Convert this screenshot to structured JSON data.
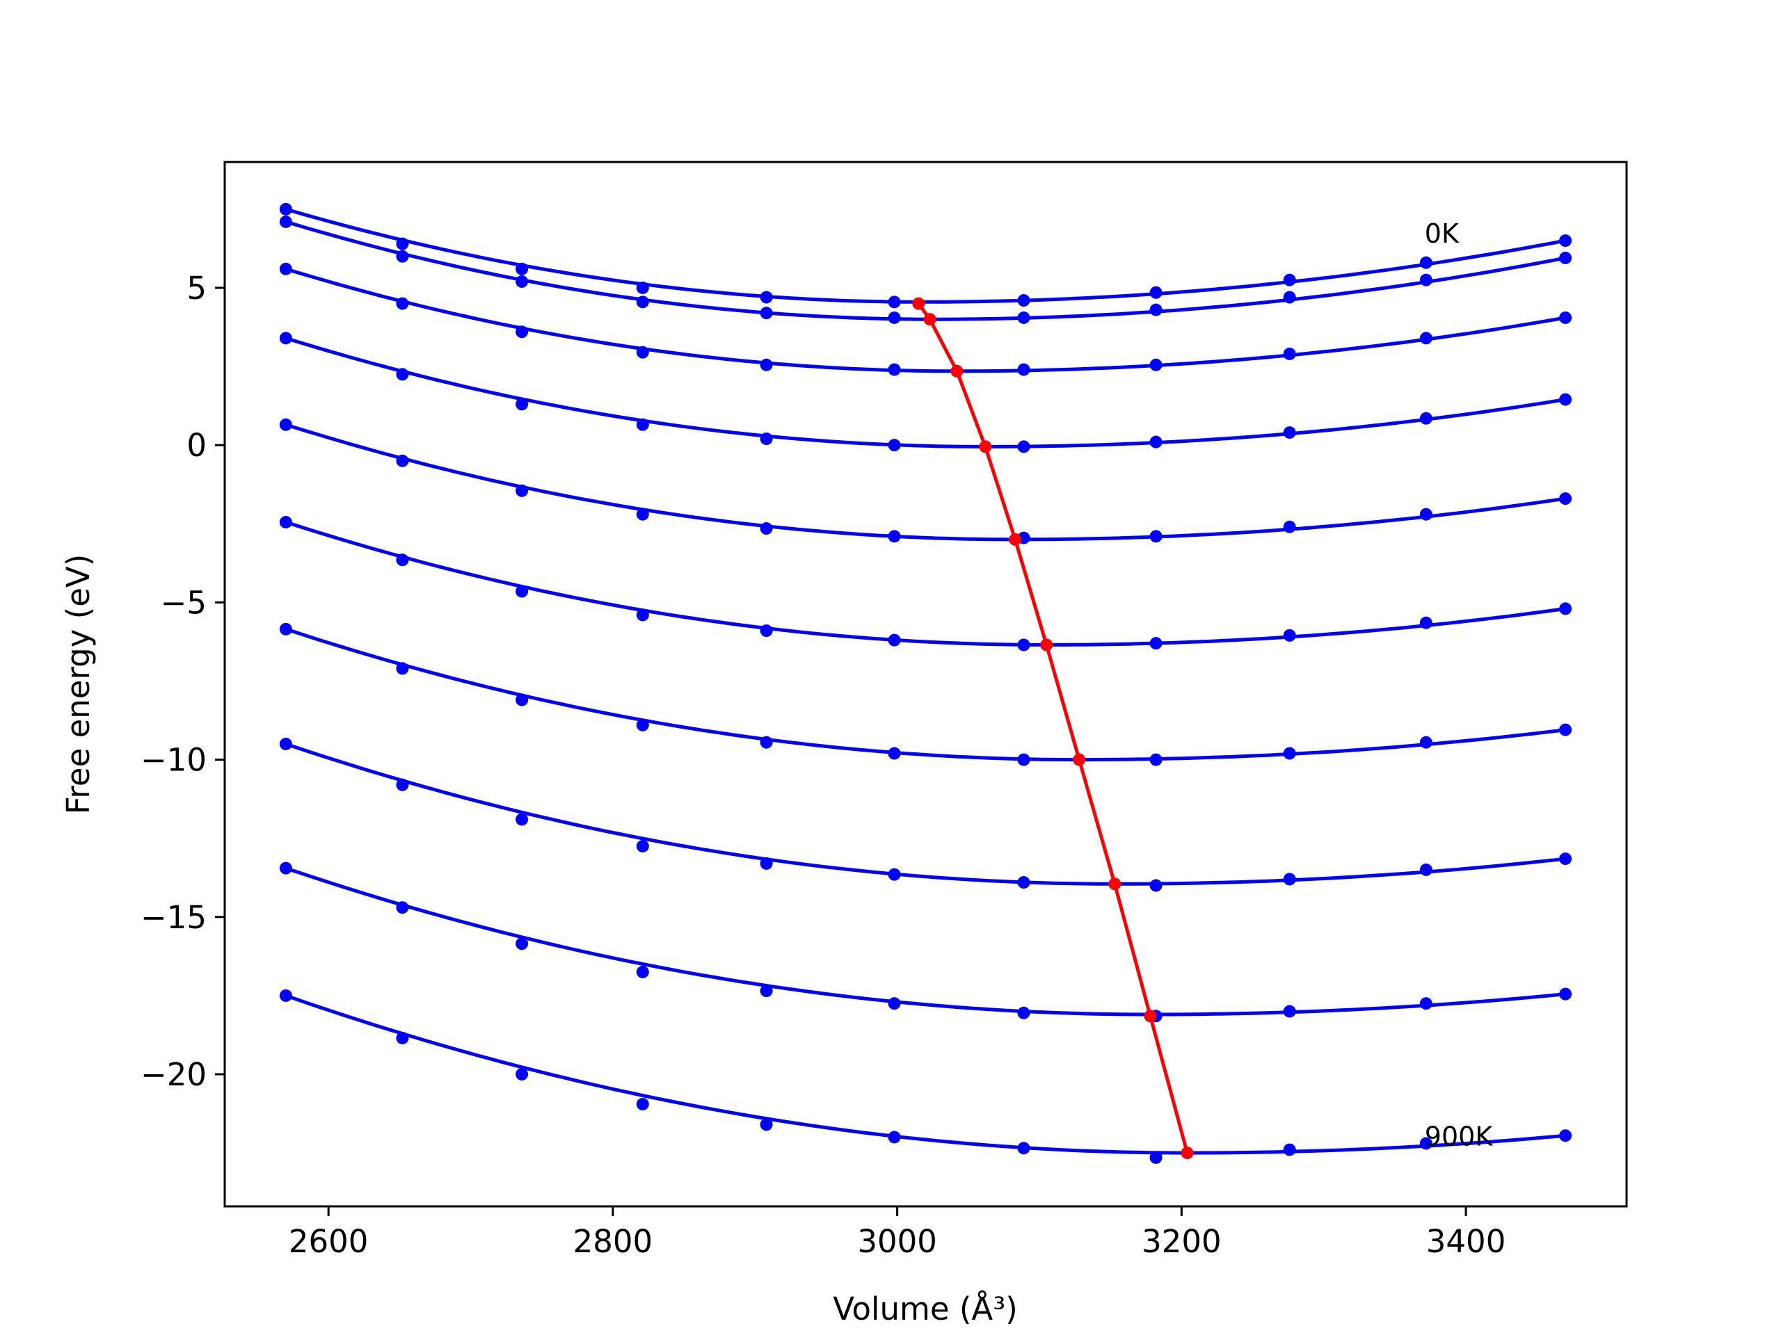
{
  "chart_data": {
    "type": "line",
    "xlabel": "Volume (Å³)",
    "ylabel": "Free energy (eV)",
    "xlim": [
      2527,
      3513
    ],
    "ylim": [
      -24.2,
      9.0
    ],
    "xticks": [
      2600,
      2800,
      3000,
      3200,
      3400
    ],
    "xtick_labels": [
      "2600",
      "2800",
      "3000",
      "3200",
      "3400"
    ],
    "yticks": [
      5,
      0,
      -5,
      -10,
      -15,
      -20
    ],
    "ytick_labels": [
      "5",
      "0",
      "−5",
      "−10",
      "−15",
      "−20"
    ],
    "grid": false,
    "legend": "none",
    "annotations": [
      {
        "text": "0K",
        "x": 3371,
        "y": 6.7
      },
      {
        "text": "900K",
        "x": 3371,
        "y": -22.0
      }
    ],
    "x": [
      2570,
      2652,
      2736,
      2821,
      2908,
      2998,
      3089,
      3182,
      3276,
      3372,
      3470
    ],
    "series": [
      {
        "color": "#0000ff",
        "points": [
          7.5,
          6.4,
          5.6,
          5.0,
          4.7,
          4.55,
          4.6,
          4.85,
          5.25,
          5.8,
          6.5
        ],
        "fit_min": [
          3017,
          4.55
        ]
      },
      {
        "color": "#0000ff",
        "points": [
          7.1,
          6.0,
          5.2,
          4.55,
          4.2,
          4.05,
          4.05,
          4.3,
          4.7,
          5.25,
          5.95
        ],
        "fit_min": [
          3025,
          4.0
        ]
      },
      {
        "color": "#0000ff",
        "points": [
          5.6,
          4.5,
          3.6,
          2.95,
          2.55,
          2.4,
          2.4,
          2.55,
          2.9,
          3.4,
          4.05
        ],
        "fit_min": [
          3042,
          2.35
        ]
      },
      {
        "color": "#0000ff",
        "points": [
          3.4,
          2.25,
          1.3,
          0.65,
          0.2,
          0.0,
          -0.05,
          0.1,
          0.4,
          0.85,
          1.45
        ],
        "fit_min": [
          3062,
          -0.05
        ]
      },
      {
        "color": "#0000ff",
        "points": [
          0.65,
          -0.5,
          -1.45,
          -2.2,
          -2.65,
          -2.9,
          -2.95,
          -2.9,
          -2.6,
          -2.2,
          -1.7
        ],
        "fit_min": [
          3083,
          -3.0
        ]
      },
      {
        "color": "#0000ff",
        "points": [
          -2.45,
          -3.65,
          -4.65,
          -5.4,
          -5.9,
          -6.2,
          -6.35,
          -6.3,
          -6.05,
          -5.65,
          -5.2
        ],
        "fit_min": [
          3105,
          -6.35
        ]
      },
      {
        "color": "#0000ff",
        "points": [
          -5.85,
          -7.1,
          -8.1,
          -8.9,
          -9.45,
          -9.8,
          -10.0,
          -10.0,
          -9.8,
          -9.45,
          -9.05
        ],
        "fit_min": [
          3128,
          -10.0
        ]
      },
      {
        "color": "#0000ff",
        "points": [
          -9.5,
          -10.8,
          -11.9,
          -12.75,
          -13.3,
          -13.65,
          -13.9,
          -14.0,
          -13.8,
          -13.5,
          -13.15
        ],
        "fit_min": [
          3153,
          -13.95
        ]
      },
      {
        "color": "#0000ff",
        "points": [
          -13.45,
          -14.7,
          -15.85,
          -16.75,
          -17.35,
          -17.75,
          -18.05,
          -18.15,
          -18.0,
          -17.75,
          -17.45
        ],
        "fit_min": [
          3178,
          -18.1
        ]
      },
      {
        "color": "#0000ff",
        "points": [
          -17.5,
          -18.85,
          -20.0,
          -20.95,
          -21.6,
          -22.0,
          -22.35,
          -22.65,
          -22.4,
          -22.2,
          -21.95
        ],
        "fit_min": [
          3204,
          -22.5
        ]
      }
    ],
    "equilibrium_line": {
      "color": "#ff0000",
      "points": [
        [
          3015,
          4.5
        ],
        [
          3023,
          4.0
        ],
        [
          3042,
          2.35
        ],
        [
          3062,
          -0.05
        ],
        [
          3083,
          -3.0
        ],
        [
          3105,
          -6.35
        ],
        [
          3128,
          -10.0
        ],
        [
          3153,
          -13.95
        ],
        [
          3178,
          -18.15
        ],
        [
          3204,
          -22.5
        ]
      ]
    }
  }
}
